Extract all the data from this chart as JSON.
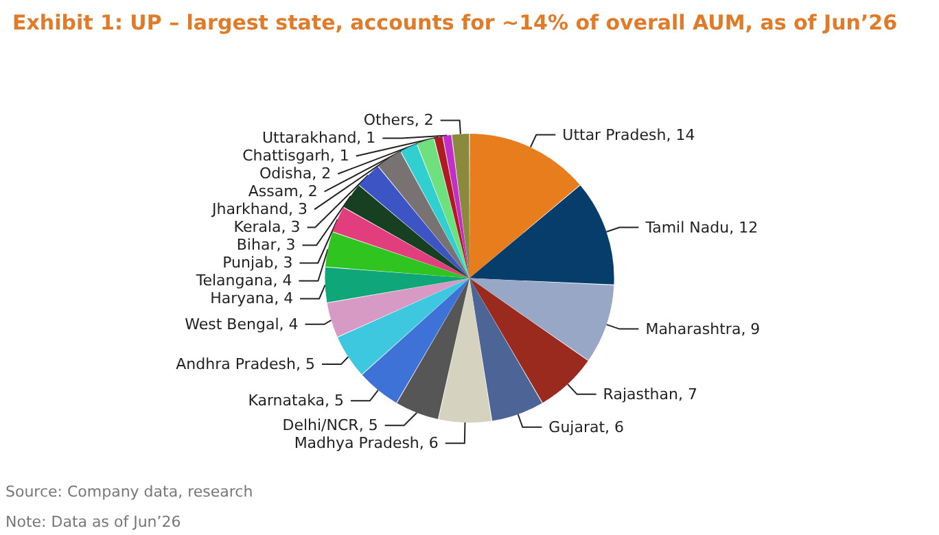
{
  "chart_data": {
    "type": "pie",
    "title": "Exhibit 1: UP – largest state, accounts for ~14% of overall AUM, as of Jun’26",
    "categories": [
      "Uttar Pradesh, 14",
      "Tamil Nadu, 12",
      "Maharashtra, 9",
      "Rajasthan, 7",
      "Gujarat, 6",
      "Madhya Pradesh, 6",
      "Delhi/NCR, 5",
      "Karnataka, 5",
      "Andhra Pradesh, 5",
      "West Bengal, 4",
      "Haryana, 4",
      "Telangana, 4",
      "Punjab, 3",
      "Bihar, 3",
      "Kerala, 3",
      "Jharkhand, 3",
      "Assam, 2",
      "Odisha, 2",
      "Chattisgarh, 1",
      "Uttarakhand, 1",
      "Others, 2"
    ],
    "values": [
      14,
      12,
      9,
      7,
      6,
      6,
      5,
      5,
      5,
      4,
      4,
      4,
      3,
      3,
      3,
      3,
      2,
      2,
      1,
      1,
      2
    ],
    "colors": [
      "#e87d1e",
      "#063d6b",
      "#98a7c6",
      "#9b2a1e",
      "#4d6596",
      "#d6d2c0",
      "#565656",
      "#3f72d6",
      "#3ec8e0",
      "#d79ac4",
      "#0fa67a",
      "#2fc41f",
      "#e23d7d",
      "#173f22",
      "#3d55c4",
      "#787272",
      "#32cfd0",
      "#6fe07e",
      "#b01a22",
      "#c030c8",
      "#8a8a3c"
    ],
    "legend": false,
    "annotations": [
      "Source: Company data, research",
      "Note: Data as of Jun’26"
    ]
  }
}
